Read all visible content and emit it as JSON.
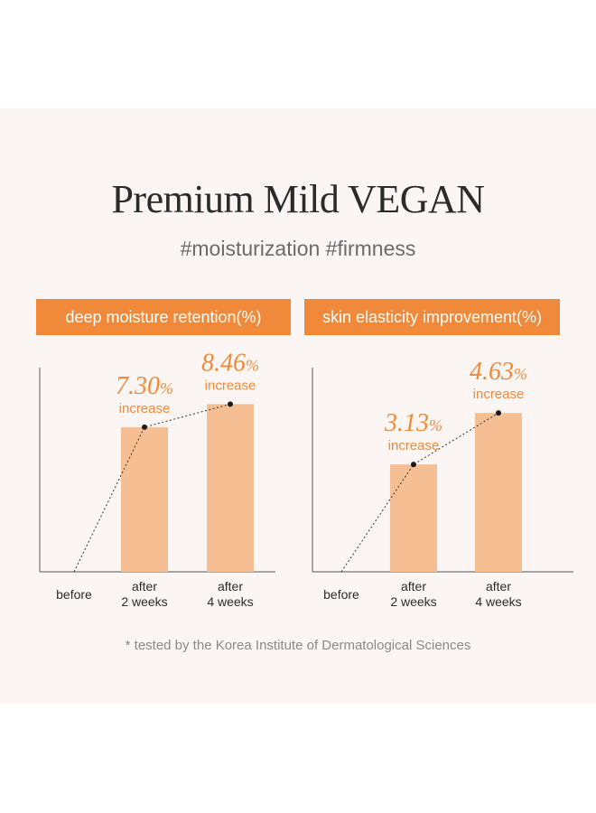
{
  "title": "Premium Mild VEGAN",
  "subtitle": "#moisturization #firmness",
  "footnote": "* tested by the Korea Institute of Dermatological Sciences",
  "colors": {
    "accent": "#f08a3a",
    "bar": "#f5bf93",
    "label": "#f08a3a",
    "axis": "#555555",
    "text": "#2b2b2b"
  },
  "chart_data": [
    {
      "type": "bar",
      "title": "deep moisture retention(%)",
      "categories": [
        "before",
        "after\n2 weeks",
        "after\n4 weeks"
      ],
      "values": [
        0,
        7.3,
        8.46
      ],
      "ylim": [
        0,
        10.3
      ],
      "data_labels": [
        {
          "value": "7.30",
          "unit": "%",
          "note": "increase"
        },
        {
          "value": "8.46",
          "unit": "%",
          "note": "increase"
        }
      ],
      "xlabel": "",
      "ylabel": "",
      "grid": false,
      "trend_line": "dotted"
    },
    {
      "type": "bar",
      "title": "skin elasticity improvement(%)",
      "categories": [
        "before",
        "after\n2 weeks",
        "after\n4 weeks"
      ],
      "values": [
        0,
        3.13,
        4.63
      ],
      "ylim": [
        0,
        5.95
      ],
      "data_labels": [
        {
          "value": "3.13",
          "unit": "%",
          "note": "increase"
        },
        {
          "value": "4.63",
          "unit": "%",
          "note": "increase"
        }
      ],
      "xlabel": "",
      "ylabel": "",
      "grid": false,
      "trend_line": "dotted"
    }
  ]
}
